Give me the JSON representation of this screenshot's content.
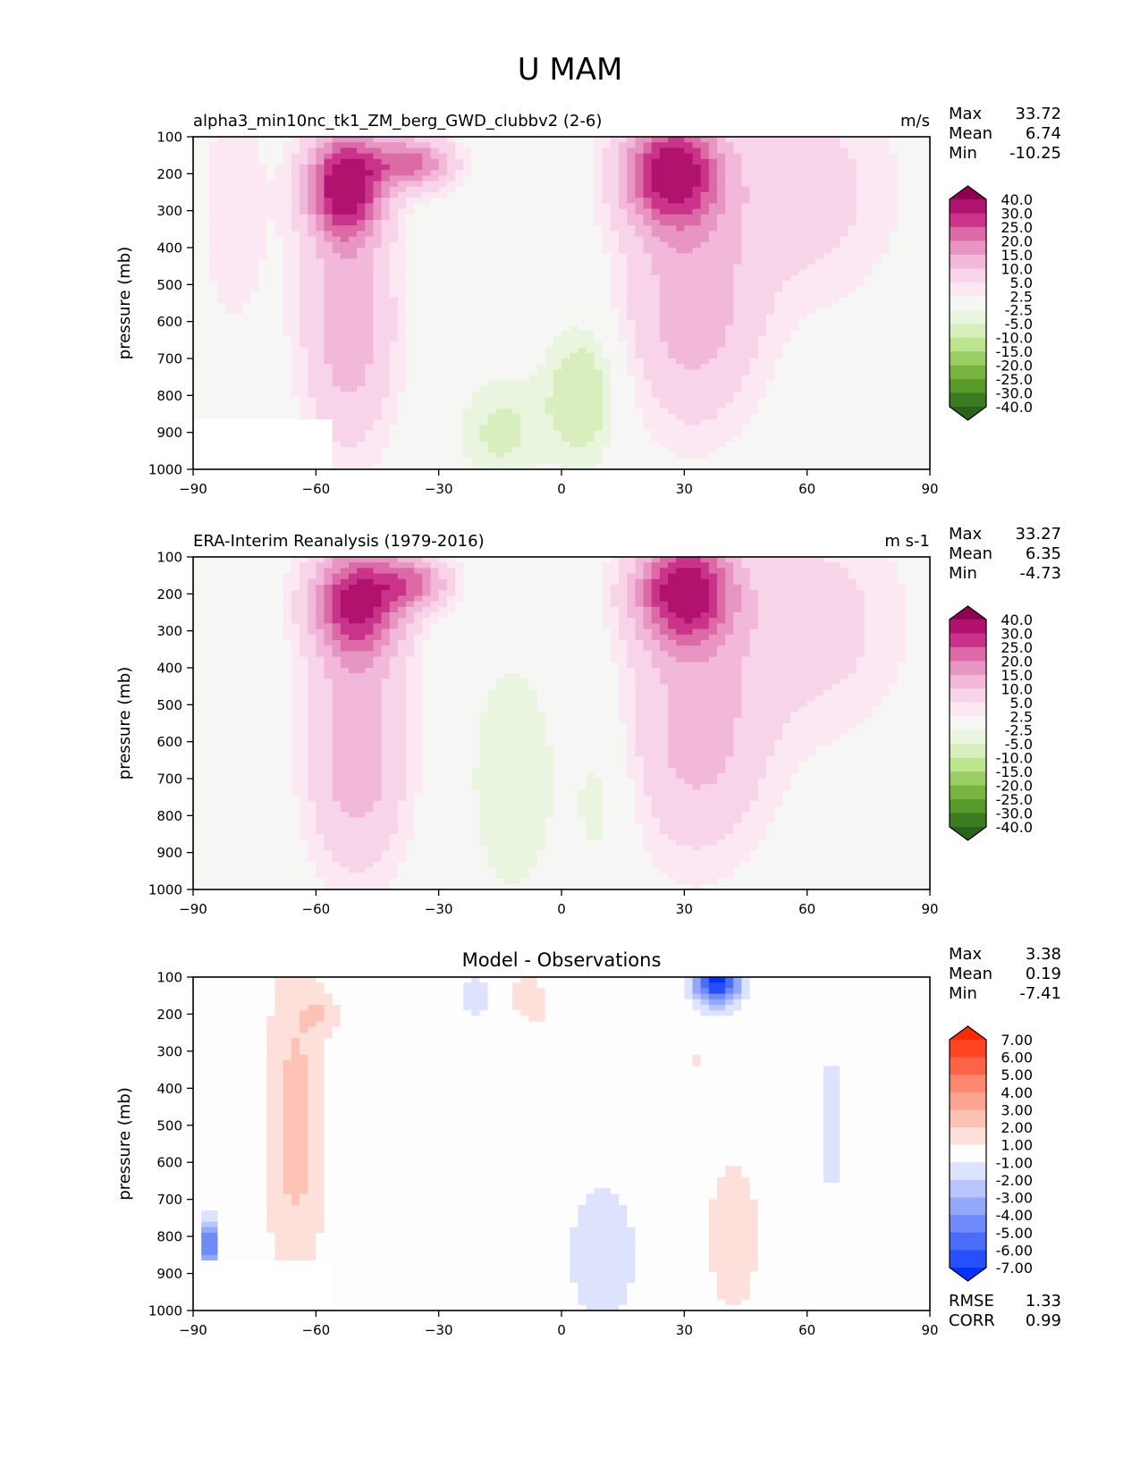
{
  "figure": {
    "suptitle": "U MAM"
  },
  "chart_data": [
    {
      "type": "heatmap",
      "plot_kind": "filled-contour",
      "title": "alpha3_min10nc_tk1_ZM_berg_GWD_clubbv2 (2-6)",
      "units": "m/s",
      "xlabel": "",
      "ylabel": "pressure (mb)",
      "xlim": [
        -90,
        90
      ],
      "ylim": [
        1000,
        100
      ],
      "xticks": [
        "−90",
        "−60",
        "−30",
        "0",
        "30",
        "60",
        "90"
      ],
      "yticks": [
        "100",
        "200",
        "300",
        "400",
        "500",
        "600",
        "700",
        "800",
        "900",
        "1000"
      ],
      "stats": {
        "Max": "33.72",
        "Mean": "6.74",
        "Min": "-10.25"
      },
      "colorbar": {
        "levels": [
          "40.0",
          "30.0",
          "25.0",
          "20.0",
          "15.0",
          "10.0",
          "5.0",
          "2.5",
          "-2.5",
          "-5.0",
          "-10.0",
          "-15.0",
          "-20.0",
          "-25.0",
          "-30.0",
          "-40.0"
        ],
        "colors": [
          "#8e0152",
          "#b0126e",
          "#c9338a",
          "#dc6aa6",
          "#e795c3",
          "#f2b8da",
          "#f8d4e9",
          "#fbe8f2",
          "#f6f6f4",
          "#eaf5df",
          "#d8efbd",
          "#bde48e",
          "#9bcf66",
          "#78b43e",
          "#579a2a",
          "#3a7c1f",
          "#276419"
        ],
        "extend": "both"
      },
      "features": [
        {
          "desc": "SH jet core",
          "lat": -53,
          "p": 230,
          "value": 33.72
        },
        {
          "desc": "NH jet core",
          "lat": 27,
          "p": 200,
          "value": 32
        },
        {
          "desc": "tropical easterlies",
          "lat": 5,
          "p": 800,
          "value": -10.25
        },
        {
          "desc": "masked topography",
          "lat_range": [
            -90,
            -55
          ],
          "p_range": [
            860,
            1000
          ]
        }
      ]
    },
    {
      "type": "heatmap",
      "plot_kind": "filled-contour",
      "title": "ERA-Interim Reanalysis (1979-2016)",
      "units": "m s-1",
      "xlabel": "",
      "ylabel": "pressure (mb)",
      "xlim": [
        -90,
        90
      ],
      "ylim": [
        1000,
        100
      ],
      "xticks": [
        "−90",
        "−60",
        "−30",
        "0",
        "30",
        "60",
        "90"
      ],
      "yticks": [
        "100",
        "200",
        "300",
        "400",
        "500",
        "600",
        "700",
        "800",
        "900",
        "1000"
      ],
      "stats": {
        "Max": "33.27",
        "Mean": "6.35",
        "Min": "-4.73"
      },
      "colorbar": {
        "levels": [
          "40.0",
          "30.0",
          "25.0",
          "20.0",
          "15.0",
          "10.0",
          "5.0",
          "2.5",
          "-2.5",
          "-5.0",
          "-10.0",
          "-15.0",
          "-20.0",
          "-25.0",
          "-30.0",
          "-40.0"
        ],
        "colors": [
          "#8e0152",
          "#b0126e",
          "#c9338a",
          "#dc6aa6",
          "#e795c3",
          "#f2b8da",
          "#f8d4e9",
          "#fbe8f2",
          "#f6f6f4",
          "#eaf5df",
          "#d8efbd",
          "#bde48e",
          "#9bcf66",
          "#78b43e",
          "#579a2a",
          "#3a7c1f",
          "#276419"
        ],
        "extend": "both"
      },
      "features": [
        {
          "desc": "SH jet core",
          "lat": -50,
          "p": 220,
          "value": 28
        },
        {
          "desc": "NH jet core",
          "lat": 30,
          "p": 190,
          "value": 33.27
        },
        {
          "desc": "tropical easterlies",
          "lat": -10,
          "p": 700,
          "value": -4.73
        }
      ]
    },
    {
      "type": "heatmap",
      "plot_kind": "filled-contour",
      "title": "Model - Observations",
      "units": "",
      "xlabel": "",
      "ylabel": "pressure (mb)",
      "xlim": [
        -90,
        90
      ],
      "ylim": [
        1000,
        100
      ],
      "xticks": [
        "−90",
        "−60",
        "−30",
        "0",
        "30",
        "60",
        "90"
      ],
      "yticks": [
        "100",
        "200",
        "300",
        "400",
        "500",
        "600",
        "700",
        "800",
        "900",
        "1000"
      ],
      "stats": {
        "Max": "3.38",
        "Mean": "0.19",
        "Min": "-7.41"
      },
      "metrics": {
        "RMSE": "1.33",
        "CORR": "0.99"
      },
      "colorbar": {
        "levels": [
          "7.00",
          "6.00",
          "5.00",
          "4.00",
          "3.00",
          "2.00",
          "1.00",
          "-1.00",
          "-2.00",
          "-3.00",
          "-4.00",
          "-5.00",
          "-6.00",
          "-7.00"
        ],
        "colors": [
          "#ff2a00",
          "#ff4422",
          "#ff6347",
          "#fc8870",
          "#fca492",
          "#fdc2b4",
          "#fee0da",
          "#fdfdfd",
          "#dde3fd",
          "#b8c6fc",
          "#93a8fb",
          "#6f8bfa",
          "#4a6dfa",
          "#2550fb",
          "#0033ff"
        ],
        "extend": "both"
      },
      "features": [
        {
          "desc": "SH positive bias band",
          "lat_range": [
            -75,
            -52
          ],
          "p_range": [
            100,
            1000
          ],
          "value": 2.5
        },
        {
          "desc": "SH upper maximum",
          "lat": -58,
          "p": 200,
          "value": 3.38
        },
        {
          "desc": "NH upper negative minimum",
          "lat": 38,
          "p": 110,
          "value": -7.41
        },
        {
          "desc": "tropical negative bias",
          "lat_range": [
            -25,
            20
          ],
          "p_range": [
            650,
            1000
          ],
          "value": -1.5
        },
        {
          "desc": "NH positive bias band",
          "lat_range": [
            30,
            52
          ],
          "p_range": [
            480,
            1000
          ],
          "value": 1.5
        }
      ]
    }
  ]
}
